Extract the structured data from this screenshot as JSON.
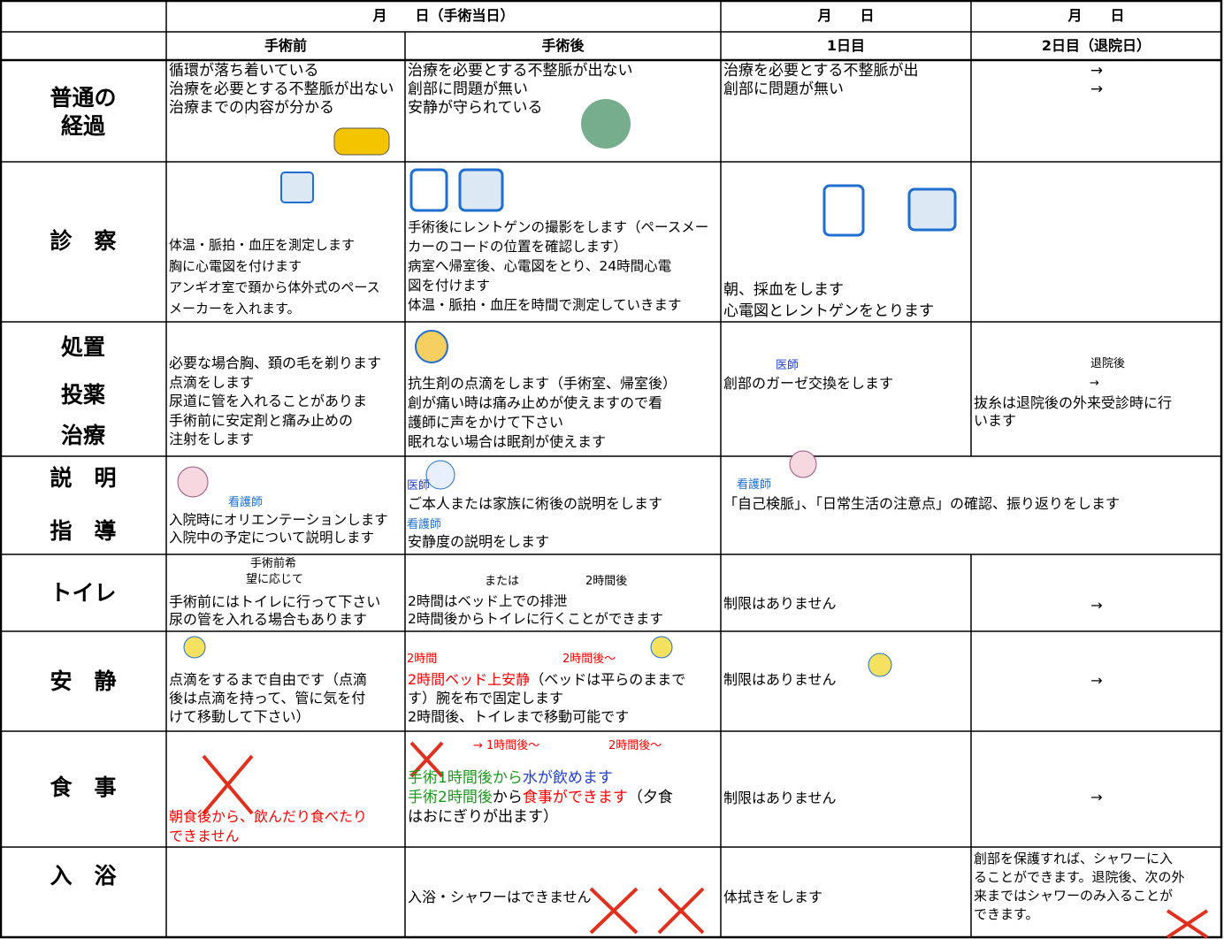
{
  "header": {
    "date_main": "月　　日（手術当日）",
    "date_day1": "月　　日",
    "date_day2": "月　　日",
    "col_before": "手術前",
    "col_after": "手術後",
    "col_day1": "1日目",
    "col_day2": "2日目（退院日）"
  },
  "rows": [
    {
      "label": [
        "普通の",
        "経過"
      ],
      "cells": [
        {
          "lines": [
            "循環が落ち着いている",
            "治療を必要とする不整脈が出ない",
            "治療までの内容が分かる"
          ]
        },
        {
          "lines": [
            "治療を必要とする不整脈が出ない",
            "創部に問題が無い",
            "安静が守られている"
          ]
        },
        {
          "lines": [
            "治療を必要とする不整脈が出",
            "創部に問題が無い"
          ]
        },
        {
          "lines": [
            "→",
            "→"
          ]
        }
      ]
    },
    {
      "label": [
        "診　察"
      ],
      "cells": [
        {
          "lines": [
            "体温・脈拍・血圧を測定します",
            "胸に心電図を付けます",
            "アンギオ室で頚から体外式のペース",
            "メーカーを入れます。"
          ]
        },
        {
          "lines": [
            "手術後にレントゲンの撮影をします（ペースメー",
            "カーのコードの位置を確認します）",
            "病室へ帰室後、心電図をとり、24時間心電",
            "図を付けます",
            "体温・脈拍・血圧を時間で測定していきます"
          ]
        },
        {
          "lines": [
            "朝、採血をします",
            "心電図とレントゲンをとります"
          ]
        },
        {
          "lines": []
        }
      ]
    },
    {
      "label": [
        "処置",
        "投薬",
        "治療"
      ],
      "cells": [
        {
          "lines": [
            "必要な場合胸、頚の毛を剃ります",
            "点滴をします",
            "尿道に管を入れることがありま",
            "手術前に安定剤と痛み止めの",
            "注射をします"
          ]
        },
        {
          "lines": [
            "抗生剤の点滴をします（手術室、帰室後）",
            "創が痛い時は痛み止めが使えますので看",
            "護師に声をかけて下さい",
            "眠れない場合は眠剤が使えます"
          ]
        },
        {
          "notes": [
            {
              "text": "医師",
              "color": "#1f3fd0"
            }
          ],
          "lines": [
            "創部のガーゼ交換をします"
          ]
        },
        {
          "notes": [
            {
              "text": "退院後",
              "color": "#000000"
            },
            {
              "text": "→",
              "color": "#000000"
            }
          ],
          "lines": [
            "抜糸は退院後の外来受診時に行",
            "います"
          ]
        }
      ]
    },
    {
      "label": [
        "説　明",
        "指　導"
      ],
      "cells": [
        {
          "notes": [
            {
              "text": "看護師",
              "color": "#1f6fd1"
            }
          ],
          "lines": [
            "入院時にオリエンテーションします",
            "入院中の予定について説明します"
          ]
        },
        {
          "notes": [
            {
              "text": "医師",
              "color": "#1f3fd0"
            },
            {
              "text": "看護師",
              "color": "#1f6fd1"
            }
          ],
          "lines": [
            "ご本人または家族に術後の説明をします",
            "安静度の説明をします"
          ]
        },
        {
          "notes": [
            {
              "text": "看護師",
              "color": "#1f6fd1"
            }
          ],
          "lines": [
            "「自己検脈」、「日常生活の注意点」の確認、振り返りをします"
          ]
        },
        {
          "lines": []
        }
      ]
    },
    {
      "label": [
        "トイレ"
      ],
      "cells": [
        {
          "notes": [
            {
              "text": "手術前希",
              "color": "#000000"
            },
            {
              "text": "望に応じて",
              "color": "#000000"
            }
          ],
          "lines": [
            "手術前にはトイレに行って下さい",
            "尿の管を入れる場合もあります"
          ]
        },
        {
          "notes": [
            {
              "text": "または",
              "color": "#000000"
            },
            {
              "text": "2時間後",
              "color": "#000000"
            }
          ],
          "lines": [
            "2時間はベッド上での排泄",
            "2時間後からトイレに行くことができます"
          ]
        },
        {
          "lines": [
            "制限はありません"
          ]
        },
        {
          "lines": [
            "→"
          ]
        }
      ]
    },
    {
      "label": [
        "安　静"
      ],
      "cells": [
        {
          "lines": [
            "点滴をするまで自由です（点滴",
            "後は点滴を持って、管に気を付",
            "けて移動して下さい）"
          ]
        },
        {
          "notes": [
            {
              "text": "2時間",
              "color": "#ff0000"
            },
            {
              "text": "2時間後～",
              "color": "#ff0000"
            }
          ],
          "lines": [
            [
              {
                "text": "2時間ベッド上安静",
                "color": "#ff0000"
              },
              {
                "text": "（ベッドは平らのままで",
                "color": "#000000"
              }
            ],
            "す）腕を布で固定します",
            "2時間後、トイレまで移動可能です"
          ]
        },
        {
          "lines": [
            "制限はありません"
          ]
        },
        {
          "lines": [
            "→"
          ]
        }
      ]
    },
    {
      "label": [
        "食　事"
      ],
      "cells": [
        {
          "lines": [
            [
              {
                "text": "朝食後から、飲んだり食べたり",
                "color": "#ff0000"
              }
            ],
            [
              {
                "text": "できません",
                "color": "#ff0000"
              }
            ]
          ]
        },
        {
          "notes": [
            {
              "text": "→ 1時間後～",
              "color": "#ff0000"
            },
            {
              "text": "2時間後～",
              "color": "#ff0000"
            }
          ],
          "lines": [
            [
              {
                "text": "手術1時間後から",
                "color": "#1a9a1a"
              },
              {
                "text": "水が飲めます",
                "color": "#1f3fd0"
              }
            ],
            [
              {
                "text": "手術2時間後",
                "color": "#1a9a1a"
              },
              {
                "text": "から",
                "color": "#000000"
              },
              {
                "text": "食事ができます",
                "color": "#ff0000"
              },
              {
                "text": "（夕食",
                "color": "#000000"
              }
            ],
            "はおにぎりが出ます）"
          ]
        },
        {
          "lines": [
            "制限はありません"
          ]
        },
        {
          "lines": [
            "→"
          ]
        }
      ]
    },
    {
      "label": [
        "入　浴"
      ],
      "cells": [
        {
          "lines": []
        },
        {
          "lines": [
            "入浴・シャワーはできません"
          ]
        },
        {
          "lines": [
            "体拭きをします"
          ]
        },
        {
          "lines": [
            "創部を保護すれば、シャワーに入",
            "ることができます。退院後、次の外",
            "来まではシャワーのみ入ることが",
            "できます。"
          ]
        }
      ]
    }
  ]
}
